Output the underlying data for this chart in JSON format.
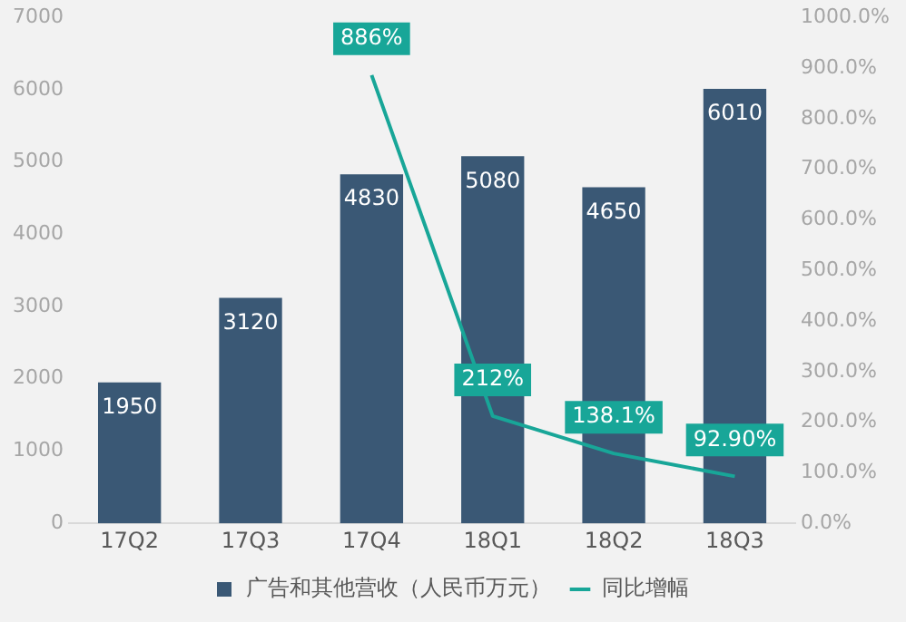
{
  "chart_data": {
    "type": "bar",
    "categories": [
      "17Q2",
      "17Q3",
      "17Q4",
      "18Q1",
      "18Q2",
      "18Q3"
    ],
    "series": [
      {
        "name": "广告和其他营收（人民币万元）",
        "color": "#3a5875",
        "values": [
          1950,
          3120,
          4830,
          5080,
          4650,
          6010
        ],
        "value_labels": [
          "1950",
          "3120",
          "4830",
          "5080",
          "4650",
          "6010"
        ]
      },
      {
        "name": "同比增幅",
        "type": "line",
        "axis": "y2",
        "color": "#18a698",
        "values": [
          null,
          null,
          886,
          212,
          138.1,
          92.9
        ],
        "value_labels": [
          null,
          null,
          "886%",
          "212%",
          "138.1%",
          "92.90%"
        ]
      }
    ],
    "ylim": [
      0,
      7000
    ],
    "yticks": [
      0,
      1000,
      2000,
      3000,
      4000,
      5000,
      6000,
      7000
    ],
    "y2lim": [
      0,
      1000
    ],
    "y2ticks": [
      {
        "value": 0,
        "label": "0.0%"
      },
      {
        "value": 100,
        "label": "100.0%"
      },
      {
        "value": 200,
        "label": "200.0%"
      },
      {
        "value": 300,
        "label": "300.0%"
      },
      {
        "value": 400,
        "label": "400.0%"
      },
      {
        "value": 500,
        "label": "500.0%"
      },
      {
        "value": 600,
        "label": "600.0%"
      },
      {
        "value": 700,
        "label": "700.0%"
      },
      {
        "value": 800,
        "label": "800.0%"
      },
      {
        "value": 900,
        "label": "900.0%"
      },
      {
        "value": 1000,
        "label": "1000.0%"
      }
    ],
    "grid": false,
    "legend": "bottom",
    "marker": "none",
    "line_style": "solid"
  }
}
